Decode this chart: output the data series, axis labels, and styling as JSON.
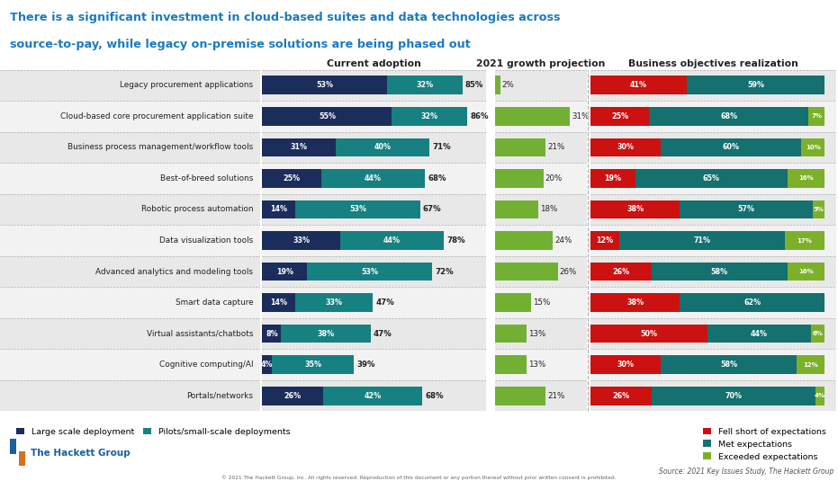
{
  "title_line1": "There is a significant investment in cloud-based suites and data technologies across",
  "title_line2": "source-to-pay, while legacy on-premise solutions are being phased out",
  "title_color": "#1a7abf",
  "white": "#ffffff",
  "light_gray": "#f0f0f0",
  "categories": [
    "Legacy procurement applications",
    "Cloud-based core procurement application suite",
    "Business process management/workflow tools",
    "Best-of-breed solutions",
    "Robotic process automation",
    "Data visualization tools",
    "Advanced analytics and modeling tools",
    "Smart data capture",
    "Virtual assistants/chatbots",
    "Cognitive computing/AI",
    "Portals/networks"
  ],
  "current_adoption_large": [
    53,
    55,
    31,
    25,
    14,
    33,
    19,
    14,
    8,
    4,
    26
  ],
  "current_adoption_pilot": [
    32,
    32,
    40,
    44,
    53,
    44,
    53,
    33,
    38,
    35,
    42
  ],
  "current_adoption_total": [
    85,
    86,
    71,
    68,
    67,
    78,
    72,
    47,
    47,
    39,
    68
  ],
  "growth_projection": [
    2,
    31,
    21,
    20,
    18,
    24,
    26,
    15,
    13,
    13,
    21
  ],
  "fell_short": [
    41,
    25,
    30,
    19,
    38,
    12,
    26,
    38,
    50,
    30,
    26
  ],
  "met_expectations": [
    59,
    68,
    60,
    65,
    57,
    71,
    58,
    62,
    44,
    58,
    70
  ],
  "exceeded_expectations": [
    0,
    7,
    10,
    16,
    5,
    17,
    16,
    0,
    6,
    12,
    4
  ],
  "color_large": "#1b2d5b",
  "color_pilot": "#178080",
  "color_growth": "#72b034",
  "color_fell": "#cc1111",
  "color_met": "#157070",
  "color_exceeded": "#7db02a",
  "row_even": "#e8e8e8",
  "row_odd": "#f2f2f2",
  "header_current": "Current adoption",
  "header_growth": "2021 growth projection",
  "header_business": "Business objectives realization",
  "legend1_label": "Large scale deployment",
  "legend2_label": "Pilots/small-scale deployments",
  "legend3_label": "Fell short of expectations",
  "legend4_label": "Met expectations",
  "legend5_label": "Exceeded expectations",
  "source_text": "Source: 2021 Key Issues Study, The Hackett Group",
  "copyright_text": "© 2021 The Hackett Group, Inc. All rights reserved. Reproduction of this document or any portion thereof without prior written consent is prohibited.",
  "hackett_blue": "#1a5fa0",
  "hackett_orange": "#d4711e"
}
